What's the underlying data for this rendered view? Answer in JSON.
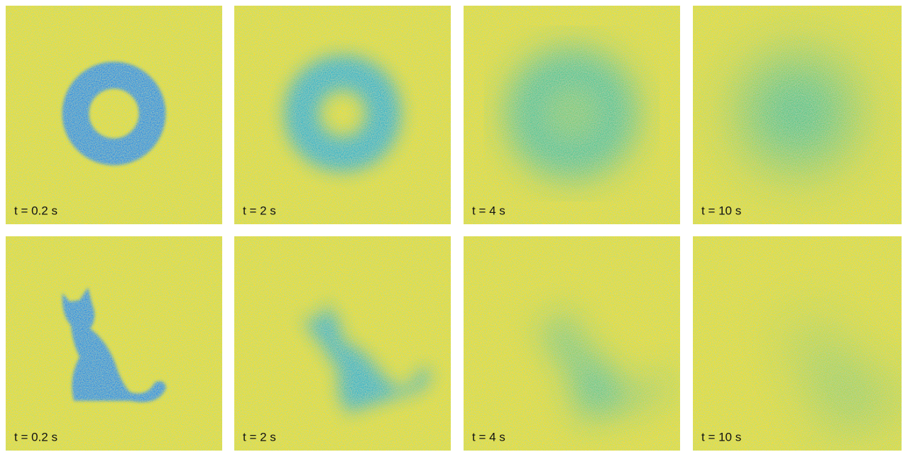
{
  "rows": [
    [
      "t = 0.2 s",
      "t = 2 s",
      "t = 4 s",
      "t = 10 s"
    ],
    [
      "t = 0.2 s",
      "t = 2 s",
      "t = 4 s",
      "t = 10 s"
    ]
  ]
}
